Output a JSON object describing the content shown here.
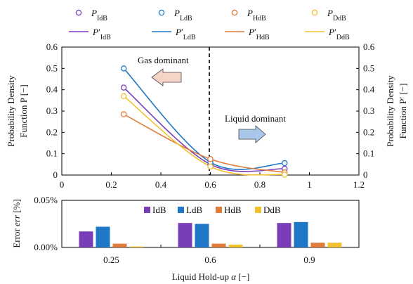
{
  "colors": {
    "IdB": "#7a3db8",
    "LdB": "#1f77c8",
    "HdB": "#e07b39",
    "DdB": "#f2c12e",
    "arrow_left_fill": "#f6d5c8",
    "arrow_right_fill": "#a9c7e8"
  },
  "chart_data": [
    {
      "type": "line",
      "x": [
        0.25,
        0.6,
        0.9
      ],
      "series": [
        {
          "key": "IdB",
          "points": [
            0.41,
            0.05,
            0.03
          ]
        },
        {
          "key": "LdB",
          "points": [
            0.5,
            0.06,
            0.056
          ]
        },
        {
          "key": "HdB",
          "points": [
            0.285,
            0.075,
            0.012
          ]
        },
        {
          "key": "DdB",
          "points": [
            0.37,
            0.04,
            0.002
          ]
        }
      ],
      "legend_markers": [
        "P_IdB",
        "P_LdB",
        "P_HdB",
        "P_DdB"
      ],
      "legend_lines": [
        "P'_IdB",
        "P'_LdB",
        "P'_HdB",
        "P'_DdB"
      ],
      "xlim": [
        0,
        1.2
      ],
      "ylim": [
        0,
        0.6
      ],
      "xticks": [
        "0",
        "0.2",
        "0.4",
        "0.6",
        "0.8",
        "1",
        "1.2"
      ],
      "yticks": [
        "0",
        "0.1",
        "0.2",
        "0.3",
        "0.4",
        "0.5",
        "0.6"
      ],
      "yticks_right": [
        "0",
        "0.1",
        "0.2",
        "0.3",
        "0.4",
        "0.5",
        "0.6"
      ],
      "ylabel_left": "Probability Density Function P [−]",
      "ylabel_right": "Probability Density Function P′ [−]",
      "vline_x": 0.6,
      "annotations": [
        "Gas dominant",
        "Liquid dominant"
      ]
    },
    {
      "type": "bar",
      "categories": [
        "0.25",
        "0.6",
        "0.9"
      ],
      "series": [
        {
          "name": "IdB",
          "values": [
            0.017,
            0.026,
            0.026
          ]
        },
        {
          "name": "LdB",
          "values": [
            0.022,
            0.025,
            0.027
          ]
        },
        {
          "name": "HdB",
          "values": [
            0.004,
            0.004,
            0.005
          ]
        },
        {
          "name": "DdB",
          "values": [
            0.001,
            0.003,
            0.005
          ]
        }
      ],
      "ylim": [
        0,
        0.05
      ],
      "yticks": [
        "0.00%",
        "0.05%"
      ],
      "ylabel": "Error err [%]",
      "xlabel": "Liquid Hold-up α [−]"
    }
  ]
}
